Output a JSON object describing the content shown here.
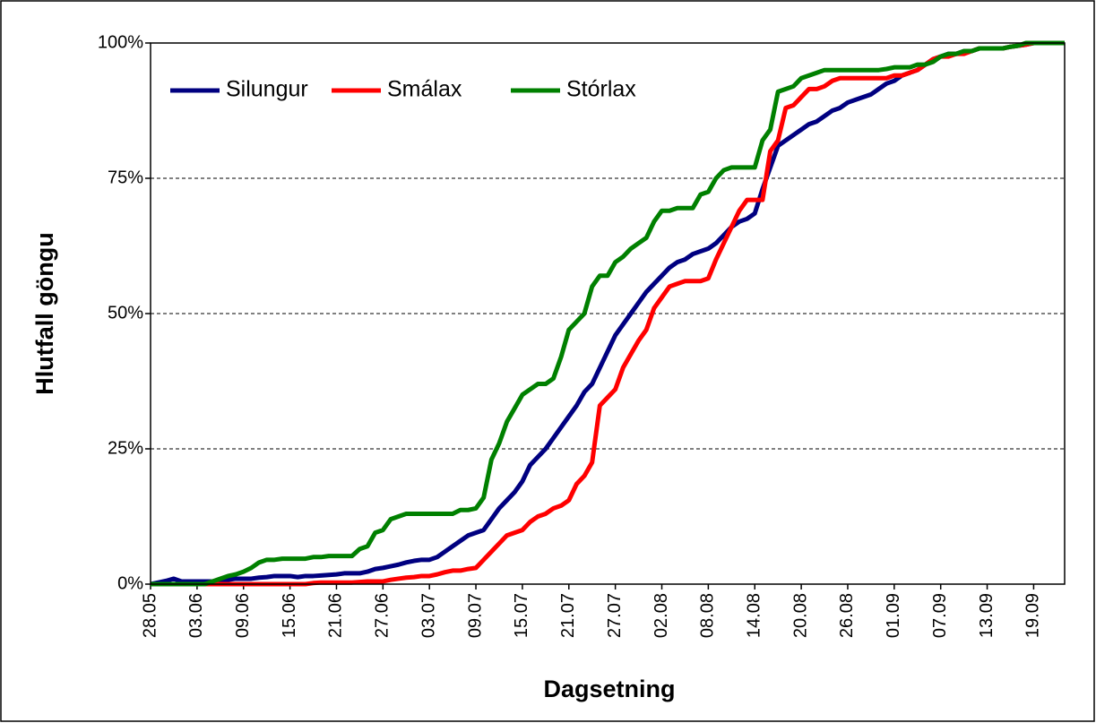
{
  "chart_data": {
    "type": "line",
    "xlabel": "Dagsetning",
    "ylabel": "Hlutfall göngu",
    "categories": [
      "28.05",
      null,
      null,
      null,
      null,
      null,
      "03.06",
      null,
      null,
      null,
      null,
      null,
      "09.06",
      null,
      null,
      null,
      null,
      null,
      "15.06",
      null,
      null,
      null,
      null,
      null,
      "21.06",
      null,
      null,
      null,
      null,
      null,
      "27.06",
      null,
      null,
      null,
      null,
      null,
      "03.07",
      null,
      null,
      null,
      null,
      null,
      "09.07",
      null,
      null,
      null,
      null,
      null,
      "15.07",
      null,
      null,
      null,
      null,
      null,
      "21.07",
      null,
      null,
      null,
      null,
      null,
      "27.07",
      null,
      null,
      null,
      null,
      null,
      "02.08",
      null,
      null,
      null,
      null,
      null,
      "08.08",
      null,
      null,
      null,
      null,
      null,
      "14.08",
      null,
      null,
      null,
      null,
      null,
      "20.08",
      null,
      null,
      null,
      null,
      null,
      "26.08",
      null,
      null,
      null,
      null,
      null,
      "01.09",
      null,
      null,
      null,
      null,
      null,
      "07.09",
      null,
      null,
      null,
      null,
      null,
      "13.09",
      null,
      null,
      null,
      null,
      null,
      "19.09",
      null,
      null,
      null,
      null
    ],
    "series": [
      {
        "name": "Silungur",
        "color": "#000080",
        "values": [
          0,
          0.3,
          0.6,
          1,
          0.5,
          0.5,
          0.5,
          0.5,
          0.5,
          0.7,
          0.8,
          1,
          1,
          1,
          1.2,
          1.3,
          1.5,
          1.5,
          1.5,
          1.3,
          1.5,
          1.5,
          1.6,
          1.7,
          1.8,
          2,
          2,
          2,
          2.3,
          2.8,
          3,
          3.3,
          3.6,
          4,
          4.3,
          4.5,
          4.5,
          5,
          6,
          7,
          8,
          9,
          9.5,
          10,
          12,
          14,
          15.5,
          17,
          19,
          22,
          23.5,
          25,
          27,
          29,
          31,
          33,
          35.5,
          37,
          40,
          43,
          46,
          48,
          50,
          52,
          54,
          55.5,
          57,
          58.5,
          59.5,
          60,
          61,
          61.5,
          62,
          63,
          64.5,
          66,
          67,
          67.5,
          68.5,
          73,
          77,
          81,
          82,
          83,
          84,
          85,
          85.5,
          86.5,
          87.5,
          88,
          89,
          89.5,
          90,
          90.5,
          91.5,
          92.5,
          93,
          94,
          94.5,
          95,
          96,
          97,
          97.5,
          98,
          98,
          98.5,
          98.5,
          99,
          99,
          99,
          99,
          99.3,
          99.5,
          99.7,
          100,
          100,
          100,
          100,
          100
        ]
      },
      {
        "name": "Smálax",
        "color": "#ff0000",
        "values": [
          0,
          0,
          0,
          0,
          0,
          0,
          0,
          0,
          0,
          0,
          0,
          0,
          0,
          0,
          0,
          0,
          0,
          0,
          0,
          0,
          0,
          0.2,
          0.3,
          0.3,
          0.3,
          0.3,
          0.3,
          0.4,
          0.5,
          0.5,
          0.5,
          0.8,
          1,
          1.2,
          1.3,
          1.5,
          1.5,
          1.8,
          2.2,
          2.5,
          2.5,
          2.8,
          3,
          4.5,
          6,
          7.5,
          9,
          9.5,
          10,
          11.5,
          12.5,
          13,
          14,
          14.5,
          15.5,
          18.5,
          20,
          22.5,
          33,
          34.5,
          36,
          40,
          42.5,
          45,
          47,
          51,
          53,
          55,
          55.5,
          56,
          56,
          56,
          56.5,
          60,
          63,
          66,
          69,
          71,
          71,
          71,
          80,
          82,
          88,
          88.5,
          90,
          91.5,
          91.5,
          92,
          93,
          93.5,
          93.5,
          93.5,
          93.5,
          93.5,
          93.5,
          93.5,
          94,
          94,
          94.5,
          95,
          96,
          97,
          97.5,
          97.5,
          98,
          98,
          98.5,
          99,
          99,
          99,
          99,
          99.3,
          99.5,
          99.7,
          100,
          100,
          100,
          100,
          100
        ]
      },
      {
        "name": "Stórlax",
        "color": "#008000",
        "values": [
          0,
          0,
          0,
          0,
          0,
          0,
          0,
          0,
          0.5,
          1,
          1.5,
          1.8,
          2.3,
          3,
          4,
          4.5,
          4.5,
          4.7,
          4.7,
          4.7,
          4.7,
          5,
          5,
          5.2,
          5.2,
          5.2,
          5.2,
          6.5,
          7,
          9.5,
          10,
          12,
          12.5,
          13,
          13,
          13,
          13,
          13,
          13,
          13,
          13.7,
          13.7,
          14,
          16,
          23,
          26,
          30,
          32.5,
          35,
          36,
          37,
          37,
          38,
          42,
          47,
          48.5,
          50,
          55,
          57,
          57,
          59.5,
          60.5,
          62,
          63,
          64,
          67,
          69,
          69,
          69.5,
          69.5,
          69.5,
          72,
          72.5,
          75,
          76.5,
          77,
          77,
          77,
          77,
          82,
          84,
          91,
          91.5,
          92,
          93.5,
          94,
          94.5,
          95,
          95,
          95,
          95,
          95,
          95,
          95,
          95,
          95.2,
          95.5,
          95.5,
          95.5,
          96,
          96,
          96.5,
          97.5,
          98,
          98,
          98.5,
          98.5,
          99,
          99,
          99,
          99,
          99.3,
          99.5,
          100,
          100,
          100,
          100,
          100,
          100
        ]
      }
    ],
    "ylim": [
      0,
      100
    ],
    "yticks": [
      {
        "value": 0,
        "label": "0%"
      },
      {
        "value": 25,
        "label": "25%"
      },
      {
        "value": 50,
        "label": "50%"
      },
      {
        "value": 75,
        "label": "75%"
      },
      {
        "value": 100,
        "label": "100%"
      }
    ],
    "grid": true,
    "legend": "upper left"
  }
}
